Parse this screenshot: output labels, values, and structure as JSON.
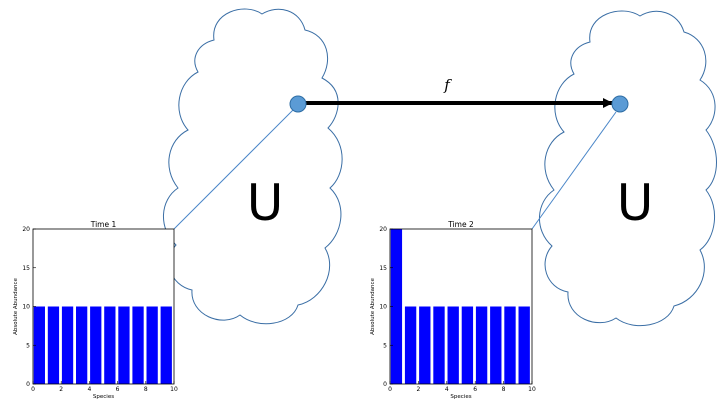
{
  "diagram": {
    "left_cloud_label": "U",
    "right_cloud_label": "U",
    "map_label": "f",
    "colors": {
      "cloud_stroke": "#3a6ea5",
      "node_fill": "#5b9bd5",
      "node_stroke": "#2e6da4",
      "pointer_line": "#4a86c8",
      "map_arrow": "#000000",
      "bar_fill": "#0000ff"
    }
  },
  "chart_data": [
    {
      "type": "bar",
      "title": "Time 1",
      "xlabel": "Species",
      "ylabel": "Absolute Abundance",
      "xlim": [
        0,
        10
      ],
      "ylim": [
        0,
        20
      ],
      "xticks": [
        0,
        2,
        4,
        6,
        8,
        10
      ],
      "yticks": [
        0,
        5,
        10,
        15,
        20
      ],
      "categories": [
        0,
        1,
        2,
        3,
        4,
        5,
        6,
        7,
        8,
        9
      ],
      "values": [
        10,
        10,
        10,
        10,
        10,
        10,
        10,
        10,
        10,
        10
      ]
    },
    {
      "type": "bar",
      "title": "Time 2",
      "xlabel": "Species",
      "ylabel": "Absolute Abundance",
      "xlim": [
        0,
        10
      ],
      "ylim": [
        0,
        20
      ],
      "xticks": [
        0,
        2,
        4,
        6,
        8,
        10
      ],
      "yticks": [
        0,
        5,
        10,
        15,
        20
      ],
      "categories": [
        0,
        1,
        2,
        3,
        4,
        5,
        6,
        7,
        8,
        9
      ],
      "values": [
        20,
        10,
        10,
        10,
        10,
        10,
        10,
        10,
        10,
        10
      ]
    }
  ]
}
